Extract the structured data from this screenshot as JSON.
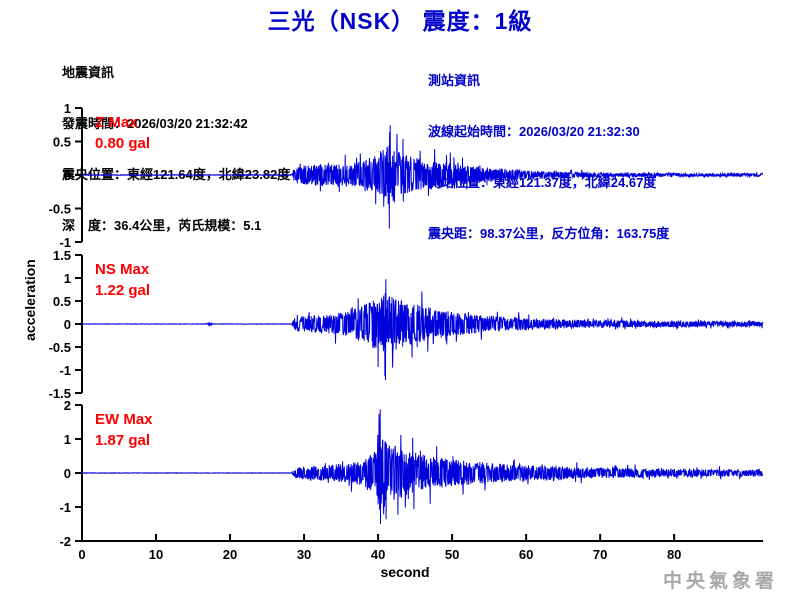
{
  "title": "三光（NSK） 震度：1級",
  "event_info": {
    "lines": [
      "地震資訊",
      "發震時間：2026/03/20 21:32:42",
      "震央位置：東經121.64度，北緯23.82度",
      "深　度：36.4公里，芮氏規模：5.1"
    ]
  },
  "station_info": {
    "lines": [
      "測站資訊",
      "波線起始時間：2026/03/20 21:32:30",
      "測站位置：東經121.37度，北緯24.67度",
      "震央距：98.37公里，反方位角：163.75度"
    ]
  },
  "watermark": "中央氣象署",
  "colors": {
    "title_blue": "#0000cc",
    "info_blue": "#0000cc",
    "max_red": "#ff0000",
    "waveform_blue": "#0000dd",
    "axis_black": "#000000",
    "watermark_gray": "#a8a8a8"
  },
  "chart_data": {
    "type": "line",
    "title": "三光（NSK） 震度：1級",
    "xlabel": "second",
    "ylabel": "acceleration",
    "x_range": [
      0,
      92
    ],
    "xticks": [
      0,
      10,
      20,
      30,
      40,
      50,
      60,
      70,
      80
    ],
    "grid": false,
    "sample_dt": 0.04,
    "onset_time": 28.6,
    "series": [
      {
        "name": "Z",
        "max_label": "Z Max",
        "max_value": "0.80 gal",
        "max_gal": 0.8,
        "peak_time": 41.5,
        "peak_sign": -1,
        "ylim": [
          -1,
          1
        ],
        "yticks": [
          1,
          0.5,
          0,
          -0.5,
          -1
        ],
        "envelope": [
          [
            0,
            0.006
          ],
          [
            28.3,
            0.006
          ],
          [
            28.7,
            0.16
          ],
          [
            30,
            0.22
          ],
          [
            32,
            0.26
          ],
          [
            34,
            0.24
          ],
          [
            36,
            0.26
          ],
          [
            38,
            0.32
          ],
          [
            40,
            0.5
          ],
          [
            41.5,
            0.75
          ],
          [
            43,
            0.5
          ],
          [
            45,
            0.4
          ],
          [
            48,
            0.32
          ],
          [
            52,
            0.22
          ],
          [
            56,
            0.15
          ],
          [
            60,
            0.1
          ],
          [
            65,
            0.07
          ],
          [
            72,
            0.05
          ],
          [
            80,
            0.04
          ],
          [
            92,
            0.035
          ]
        ]
      },
      {
        "name": "NS",
        "max_label": "NS Max",
        "max_value": "1.22 gal",
        "max_gal": 1.22,
        "peak_time": 41.0,
        "peak_sign": -1,
        "ylim": [
          -1.5,
          1.5
        ],
        "yticks": [
          1.5,
          1,
          0.5,
          0,
          -0.5,
          -1,
          -1.5
        ],
        "envelope": [
          [
            0,
            0.006
          ],
          [
            16.8,
            0.006
          ],
          [
            17.2,
            0.07
          ],
          [
            17.7,
            0.006
          ],
          [
            28.3,
            0.006
          ],
          [
            28.7,
            0.22
          ],
          [
            30,
            0.3
          ],
          [
            32,
            0.33
          ],
          [
            34,
            0.38
          ],
          [
            36,
            0.45
          ],
          [
            38,
            0.7
          ],
          [
            40,
            1.0
          ],
          [
            41.5,
            1.1
          ],
          [
            43,
            0.85
          ],
          [
            45,
            0.75
          ],
          [
            47,
            0.6
          ],
          [
            50,
            0.45
          ],
          [
            54,
            0.33
          ],
          [
            58,
            0.25
          ],
          [
            62,
            0.2
          ],
          [
            68,
            0.15
          ],
          [
            75,
            0.12
          ],
          [
            85,
            0.1
          ],
          [
            92,
            0.1
          ]
        ]
      },
      {
        "name": "EW",
        "max_label": "EW Max",
        "max_value": "1.87 gal",
        "max_gal": 1.87,
        "peak_time": 40.3,
        "peak_sign": 1,
        "ylim": [
          -2,
          2
        ],
        "yticks": [
          2,
          1,
          0,
          -1,
          -2
        ],
        "envelope": [
          [
            0,
            0.006
          ],
          [
            28.3,
            0.006
          ],
          [
            28.7,
            0.18
          ],
          [
            30,
            0.22
          ],
          [
            32,
            0.26
          ],
          [
            34,
            0.3
          ],
          [
            36,
            0.35
          ],
          [
            38,
            0.45
          ],
          [
            39.8,
            0.8
          ],
          [
            40.3,
            1.7
          ],
          [
            41,
            1.2
          ],
          [
            42,
            1.0
          ],
          [
            44,
            0.8
          ],
          [
            46,
            0.65
          ],
          [
            48,
            0.55
          ],
          [
            51,
            0.45
          ],
          [
            54,
            0.38
          ],
          [
            58,
            0.3
          ],
          [
            62,
            0.25
          ],
          [
            68,
            0.2
          ],
          [
            75,
            0.16
          ],
          [
            85,
            0.13
          ],
          [
            92,
            0.12
          ]
        ]
      }
    ]
  }
}
